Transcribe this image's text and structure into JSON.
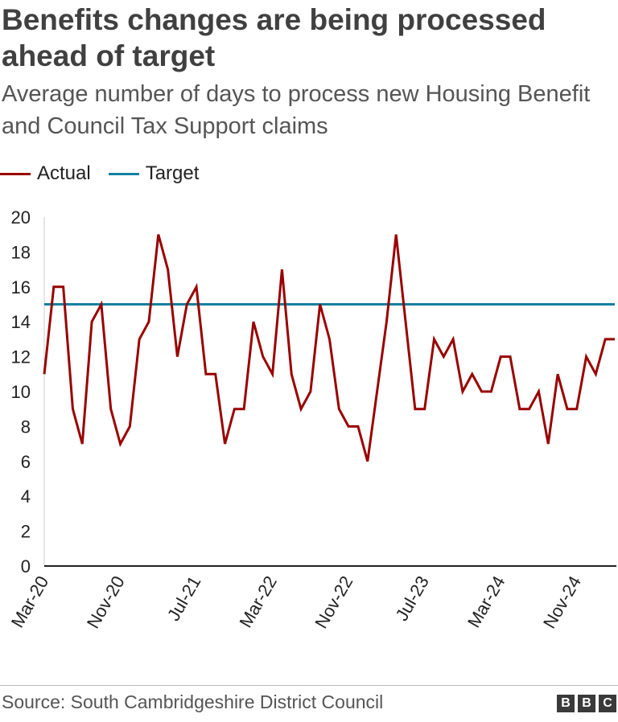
{
  "chart_data": {
    "type": "line",
    "title": "Benefits changes are being processed ahead of target",
    "subtitle": "Average number of days to process new Housing Benefit and Council Tax Support claims",
    "ylim": [
      0,
      20
    ],
    "yticks": [
      0,
      2,
      4,
      6,
      8,
      10,
      12,
      14,
      16,
      18,
      20
    ],
    "x_start": "Mar-20",
    "x_tick_labels": [
      "Mar-20",
      "Nov-20",
      "Jul-21",
      "Mar-22",
      "Nov-22",
      "Jul-23",
      "Mar-24",
      "Nov-24"
    ],
    "legend_position": "top-left",
    "grid": false,
    "series": [
      {
        "name": "Actual",
        "color": "#990000",
        "values": [
          11,
          16,
          16,
          9,
          7,
          14,
          15,
          9,
          7,
          8,
          13,
          14,
          19,
          17,
          12,
          15,
          16,
          11,
          11,
          7,
          9,
          9,
          14,
          12,
          11,
          17,
          11,
          9,
          10,
          15,
          13,
          9,
          8,
          8,
          6,
          10,
          14,
          19,
          14,
          9,
          9,
          13,
          12,
          13,
          10,
          11,
          10,
          10,
          12,
          12,
          9,
          9,
          10,
          7,
          11,
          9,
          9,
          12,
          11,
          13,
          13
        ]
      },
      {
        "name": "Target",
        "color": "#1380A1",
        "values": [
          15,
          15
        ]
      }
    ]
  },
  "source": "Source: South Cambridgeshire District Council",
  "logo": [
    "B",
    "B",
    "C"
  ]
}
